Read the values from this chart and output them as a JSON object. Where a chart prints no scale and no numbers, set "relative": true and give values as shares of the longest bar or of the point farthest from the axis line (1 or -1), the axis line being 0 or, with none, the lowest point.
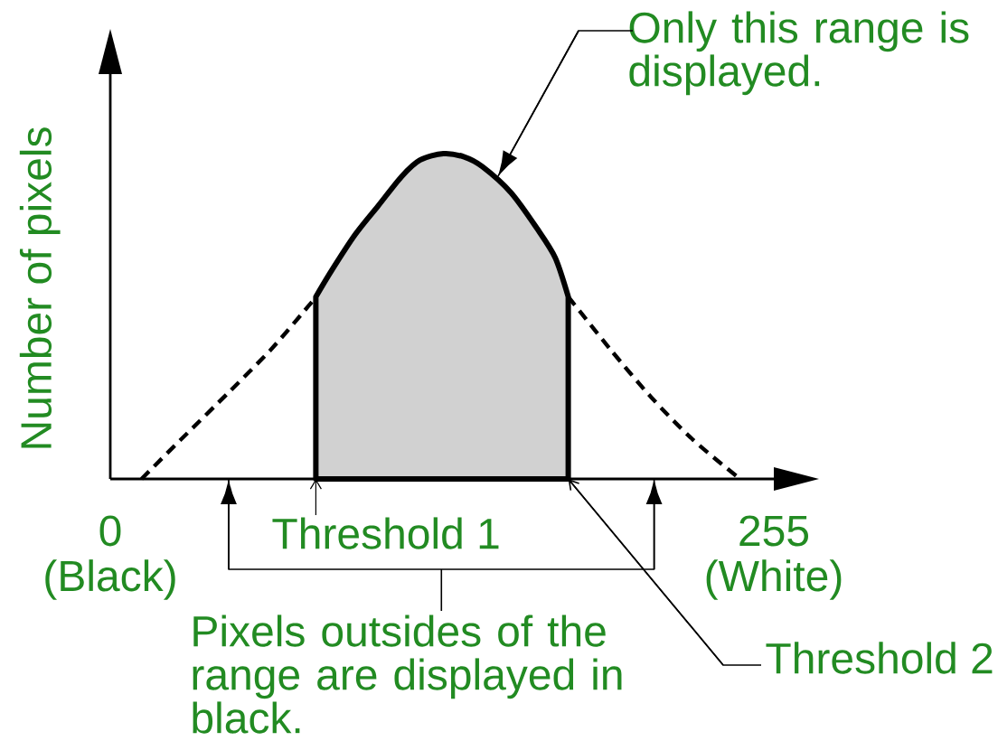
{
  "chart_data": {
    "type": "line",
    "relative": true,
    "ylabel": "Number of pixels",
    "xlim": [
      0,
      255
    ],
    "xticks": [
      {
        "value": 0,
        "label": "0 (Black)"
      },
      {
        "value": 255,
        "label": "255 (White)"
      }
    ],
    "series": [
      {
        "color": "#000000",
        "line_style": "dashed",
        "x": [
          12,
          27,
          46,
          62,
          76,
          79
        ],
        "values": [
          0,
          0.12,
          0.27,
          0.4,
          0.53,
          0.56
        ]
      },
      {
        "type": "area",
        "color": "#000000",
        "line_style": "solid",
        "x": [
          79,
          85,
          94,
          103,
          112,
          119,
          128,
          136,
          143,
          154,
          164,
          171,
          176
        ],
        "values": [
          0.56,
          0.64,
          0.75,
          0.84,
          0.93,
          0.98,
          1,
          0.99,
          0.96,
          0.88,
          0.77,
          0.68,
          0.56
        ]
      },
      {
        "color": "#000000",
        "line_style": "dashed",
        "x": [
          176,
          192,
          208,
          224,
          242
        ],
        "values": [
          0.56,
          0.4,
          0.25,
          0.12,
          0
        ]
      }
    ],
    "annotations": [
      {
        "text": "Only this range is displayed.",
        "x": 149,
        "y": 0.93
      },
      "Threshold 1",
      "Pixels outsides of the range are displayed in black.",
      "Threshold 2"
    ]
  }
}
